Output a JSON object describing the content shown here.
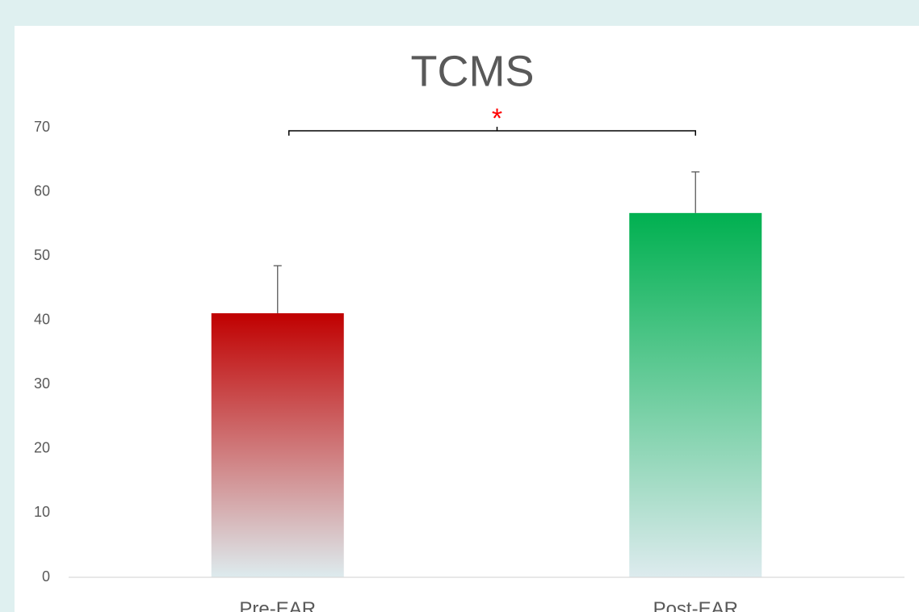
{
  "chart_data": {
    "type": "bar",
    "title": "TCMS",
    "categories": [
      "Pre-EAR",
      "Post-EAR"
    ],
    "values": [
      41.1,
      56.7
    ],
    "errors": [
      7.4,
      6.4
    ],
    "colors": [
      "#c00000",
      "#00b050"
    ],
    "ylim": [
      0,
      70
    ],
    "yticks": [
      0,
      10,
      20,
      30,
      40,
      50,
      60,
      70
    ],
    "grid": false,
    "annotation": "*",
    "annotation_color": "#ff0000"
  }
}
